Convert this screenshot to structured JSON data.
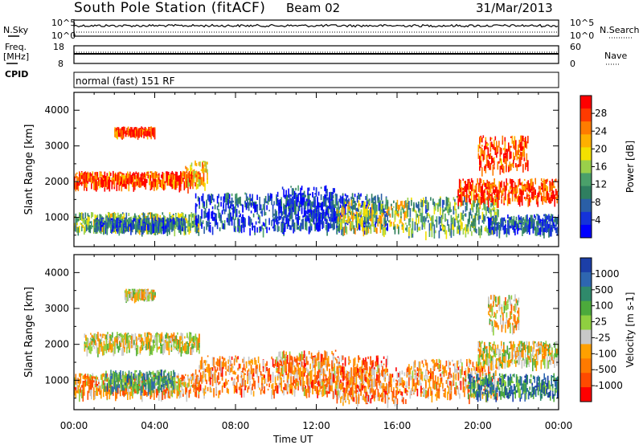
{
  "header": {
    "station": "South Pole Station (fitACF)",
    "beam": "Beam 02",
    "date": "31/Mar/2013"
  },
  "top_strips": {
    "nsky_label": "N.Sky",
    "nsearch_label": "N.Search",
    "freq_label_1": "Freq.",
    "freq_label_2": "[MHz]",
    "nave_label": "Nave",
    "cpid_label": "CPID",
    "cpid_value": "normal (fast) 151 RF",
    "noise_left_ticks": [
      "10^5",
      "10^0"
    ],
    "noise_right_ticks": [
      "10^5",
      "10^0"
    ],
    "freq_left_ticks": [
      "18",
      "8"
    ],
    "freq_right_ticks": [
      "60",
      "0"
    ]
  },
  "chart_data": [
    {
      "type": "heatmap",
      "name": "Power",
      "ylabel": "Slant Range [km]",
      "xlabel": "Time UT",
      "ylim": [
        180,
        4500
      ],
      "y_ticks": [
        "1000",
        "2000",
        "3000",
        "4000"
      ],
      "x_ticks": [
        "00:00",
        "04:00",
        "08:00",
        "12:00",
        "16:00",
        "20:00",
        "00:00"
      ],
      "colorbar_label": "Power [dB]",
      "colorbar_ticks": [
        "28",
        "24",
        "20",
        "16",
        "12",
        "8",
        "4"
      ],
      "colorbar_colors": [
        "#ff0000",
        "#ff3a00",
        "#ff7c00",
        "#ffb000",
        "#f3e000",
        "#9ad04a",
        "#4aa06a",
        "#2f7f60",
        "#2a5fa6",
        "#1533d9",
        "#0000ff"
      ],
      "regions": [
        {
          "t0": 0.0,
          "t1": 6.2,
          "r0": 700,
          "r1": 1150,
          "lvl": 0.55
        },
        {
          "t0": 1.0,
          "t1": 5.5,
          "r0": 750,
          "r1": 1000,
          "lvl": 0.75
        },
        {
          "t0": 0.0,
          "t1": 5.8,
          "r0": 1950,
          "r1": 2300,
          "lvl": 0.15
        },
        {
          "t0": 5.5,
          "t1": 6.6,
          "r0": 1900,
          "r1": 2600,
          "lvl": 0.3
        },
        {
          "t0": 6.0,
          "t1": 15.5,
          "r0": 700,
          "r1": 1700,
          "lvl": 0.82
        },
        {
          "t0": 10.0,
          "t1": 13.0,
          "r0": 800,
          "r1": 1900,
          "lvl": 0.85
        },
        {
          "t0": 13.0,
          "t1": 16.5,
          "r0": 700,
          "r1": 1500,
          "lvl": 0.45
        },
        {
          "t0": 16.5,
          "t1": 21.0,
          "r0": 600,
          "r1": 1600,
          "lvl": 0.6
        },
        {
          "t0": 20.5,
          "t1": 24.0,
          "r0": 650,
          "r1": 1100,
          "lvl": 0.8
        },
        {
          "t0": 19.0,
          "t1": 24.0,
          "r0": 1500,
          "r1": 2100,
          "lvl": 0.15
        },
        {
          "t0": 2.0,
          "t1": 4.0,
          "r0": 3400,
          "r1": 3550,
          "lvl": 0.15
        },
        {
          "t0": 20.0,
          "t1": 22.5,
          "r0": 2400,
          "r1": 3300,
          "lvl": 0.15
        }
      ]
    },
    {
      "type": "heatmap",
      "name": "Velocity",
      "ylabel": "Slant Range [km]",
      "xlabel": "Time UT",
      "ylim": [
        180,
        4500
      ],
      "y_ticks": [
        "1000",
        "2000",
        "3000",
        "4000"
      ],
      "x_ticks": [
        "00:00",
        "04:00",
        "08:00",
        "12:00",
        "16:00",
        "20:00",
        "00:00"
      ],
      "colorbar_label": "Velocity [m s-1]",
      "colorbar_ticks": [
        "1000",
        "500",
        "100",
        "25",
        "-25",
        "-100",
        "-500",
        "-1000"
      ],
      "colorbar_colors": [
        "#1c3fa8",
        "#2e66b0",
        "#2f8a6b",
        "#4caa3c",
        "#8fd040",
        "#c8c8c8",
        "#ffa000",
        "#ff7a00",
        "#ff4a00",
        "#ff0000"
      ],
      "regions": [
        {
          "t0": 0.0,
          "t1": 6.2,
          "r0": 650,
          "r1": 1200,
          "lvl": 0.68
        },
        {
          "t0": 1.5,
          "t1": 5.0,
          "r0": 800,
          "r1": 1300,
          "lvl": 0.3
        },
        {
          "t0": 0.5,
          "t1": 6.2,
          "r0": 1900,
          "r1": 2350,
          "lvl": 0.55
        },
        {
          "t0": 6.0,
          "t1": 15.5,
          "r0": 700,
          "r1": 1700,
          "lvl": 0.72
        },
        {
          "t0": 10.0,
          "t1": 13.0,
          "r0": 800,
          "r1": 1850,
          "lvl": 0.7
        },
        {
          "t0": 13.0,
          "t1": 16.5,
          "r0": 450,
          "r1": 1400,
          "lvl": 0.72
        },
        {
          "t0": 16.5,
          "t1": 21.0,
          "r0": 600,
          "r1": 1600,
          "lvl": 0.7
        },
        {
          "t0": 19.5,
          "t1": 24.0,
          "r0": 600,
          "r1": 1200,
          "lvl": 0.25
        },
        {
          "t0": 20.0,
          "t1": 24.0,
          "r0": 1500,
          "r1": 2100,
          "lvl": 0.55
        },
        {
          "t0": 2.5,
          "t1": 4.0,
          "r0": 3400,
          "r1": 3550,
          "lvl": 0.55
        },
        {
          "t0": 20.5,
          "t1": 22.0,
          "r0": 2500,
          "r1": 3400,
          "lvl": 0.6
        }
      ]
    }
  ]
}
